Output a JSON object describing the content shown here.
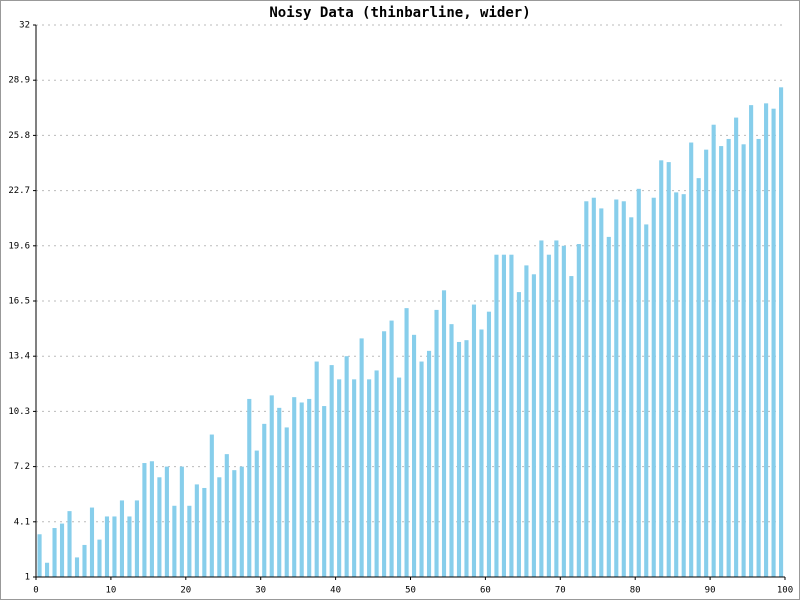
{
  "chart_data": {
    "type": "bar",
    "title": "Noisy Data (thinbarline, wider)",
    "x": [
      0,
      1,
      2,
      3,
      4,
      5,
      6,
      7,
      8,
      9,
      10,
      11,
      12,
      13,
      14,
      15,
      16,
      17,
      18,
      19,
      20,
      21,
      22,
      23,
      24,
      25,
      26,
      27,
      28,
      29,
      30,
      31,
      32,
      33,
      34,
      35,
      36,
      37,
      38,
      39,
      40,
      41,
      42,
      43,
      44,
      45,
      46,
      47,
      48,
      49,
      50,
      51,
      52,
      53,
      54,
      55,
      56,
      57,
      58,
      59,
      60,
      61,
      62,
      63,
      64,
      65,
      66,
      67,
      68,
      69,
      70,
      71,
      72,
      73,
      74,
      75,
      76,
      77,
      78,
      79,
      80,
      81,
      82,
      83,
      84,
      85,
      86,
      87,
      88,
      89,
      90,
      91,
      92,
      93,
      94,
      95,
      96,
      97,
      98,
      99
    ],
    "values": [
      3.4,
      1.8,
      3.75,
      4.0,
      4.7,
      2.1,
      2.8,
      4.9,
      3.1,
      4.4,
      4.4,
      5.3,
      4.4,
      5.3,
      7.4,
      7.5,
      6.6,
      7.2,
      5.0,
      7.2,
      5.0,
      6.2,
      6.0,
      9.0,
      6.6,
      7.9,
      7.0,
      7.2,
      11.0,
      8.1,
      9.6,
      11.2,
      10.5,
      9.4,
      11.1,
      10.8,
      11.0,
      13.1,
      10.6,
      12.9,
      12.1,
      13.4,
      12.1,
      14.4,
      12.1,
      12.6,
      14.8,
      15.4,
      12.2,
      16.1,
      14.6,
      13.1,
      13.7,
      16.0,
      17.1,
      15.2,
      14.2,
      14.3,
      16.3,
      14.9,
      15.9,
      19.1,
      19.1,
      19.1,
      17.0,
      18.5,
      18.0,
      19.9,
      19.1,
      19.9,
      19.6,
      17.9,
      19.7,
      22.1,
      22.3,
      21.7,
      20.1,
      22.2,
      22.1,
      21.2,
      22.8,
      20.8,
      22.3,
      24.4,
      24.3,
      22.6,
      22.5,
      25.4,
      23.4,
      25.0,
      26.4,
      25.2,
      25.6,
      26.8,
      25.3,
      27.5,
      25.6,
      27.6,
      27.3,
      28.5
    ],
    "color": "#87ceeb",
    "xlim": [
      0,
      100
    ],
    "xticks": [
      0,
      10,
      20,
      30,
      40,
      50,
      60,
      70,
      80,
      90,
      100
    ],
    "ylim": [
      1,
      32
    ],
    "yticks": [
      1,
      4.1,
      7.2,
      10.3,
      13.4,
      16.5,
      19.6,
      22.7,
      25.8,
      28.9,
      32
    ],
    "grid": true
  }
}
